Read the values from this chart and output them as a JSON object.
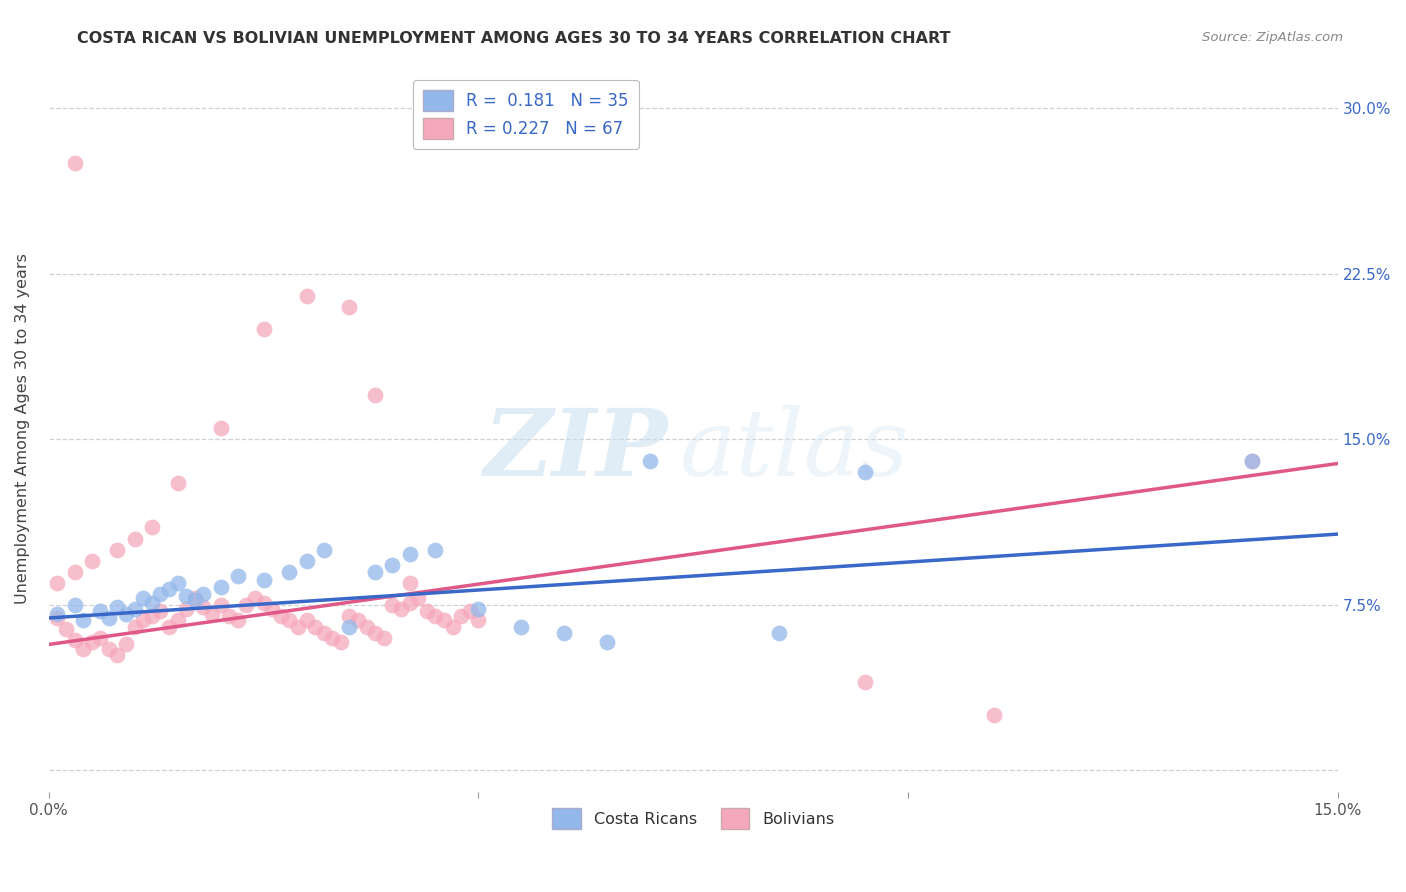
{
  "title": "COSTA RICAN VS BOLIVIAN UNEMPLOYMENT AMONG AGES 30 TO 34 YEARS CORRELATION CHART",
  "source": "Source: ZipAtlas.com",
  "ylabel": "Unemployment Among Ages 30 to 34 years",
  "xlim": [
    0.0,
    0.15
  ],
  "ylim": [
    -0.01,
    0.32
  ],
  "xticks": [
    0.0,
    0.05,
    0.1,
    0.15
  ],
  "xticklabels": [
    "0.0%",
    "",
    "",
    "15.0%"
  ],
  "yticks": [
    0.0,
    0.075,
    0.15,
    0.225,
    0.3
  ],
  "yticklabels_right": [
    "",
    "7.5%",
    "15.0%",
    "22.5%",
    "30.0%"
  ],
  "costa_rican_color": "#93b8ea",
  "bolivian_color": "#f5a8bb",
  "costa_rican_line_color": "#3a68c8",
  "bolivian_line_color": "#e05888",
  "costa_rican_R": 0.181,
  "costa_rican_N": 35,
  "bolivian_R": 0.227,
  "bolivian_N": 67,
  "background_color": "#ffffff",
  "grid_color": "#cccccc",
  "watermark_zip": "ZIP",
  "watermark_atlas": "atlas",
  "costa_ricans_x": [
    0.001,
    0.003,
    0.004,
    0.006,
    0.007,
    0.008,
    0.009,
    0.01,
    0.011,
    0.012,
    0.013,
    0.014,
    0.015,
    0.016,
    0.017,
    0.018,
    0.02,
    0.022,
    0.025,
    0.028,
    0.03,
    0.032,
    0.035,
    0.038,
    0.04,
    0.042,
    0.045,
    0.05,
    0.055,
    0.06,
    0.065,
    0.07,
    0.085,
    0.095,
    0.14
  ],
  "costa_ricans_y": [
    0.071,
    0.075,
    0.068,
    0.072,
    0.069,
    0.074,
    0.071,
    0.073,
    0.078,
    0.076,
    0.08,
    0.082,
    0.085,
    0.079,
    0.077,
    0.08,
    0.083,
    0.088,
    0.086,
    0.09,
    0.095,
    0.1,
    0.065,
    0.09,
    0.093,
    0.098,
    0.1,
    0.073,
    0.065,
    0.062,
    0.058,
    0.14,
    0.062,
    0.135,
    0.14
  ],
  "bolivians_x": [
    0.001,
    0.002,
    0.003,
    0.004,
    0.005,
    0.006,
    0.007,
    0.008,
    0.009,
    0.01,
    0.011,
    0.012,
    0.013,
    0.014,
    0.015,
    0.016,
    0.017,
    0.018,
    0.019,
    0.02,
    0.021,
    0.022,
    0.023,
    0.024,
    0.025,
    0.026,
    0.027,
    0.028,
    0.029,
    0.03,
    0.031,
    0.032,
    0.033,
    0.034,
    0.035,
    0.036,
    0.037,
    0.038,
    0.039,
    0.04,
    0.041,
    0.042,
    0.043,
    0.044,
    0.045,
    0.046,
    0.047,
    0.048,
    0.049,
    0.05,
    0.001,
    0.003,
    0.005,
    0.008,
    0.01,
    0.012,
    0.015,
    0.02,
    0.025,
    0.03,
    0.035,
    0.038,
    0.042,
    0.095,
    0.11,
    0.14,
    0.003
  ],
  "bolivians_y": [
    0.069,
    0.064,
    0.059,
    0.055,
    0.058,
    0.06,
    0.055,
    0.052,
    0.057,
    0.065,
    0.068,
    0.07,
    0.072,
    0.065,
    0.068,
    0.073,
    0.078,
    0.074,
    0.071,
    0.075,
    0.07,
    0.068,
    0.075,
    0.078,
    0.076,
    0.073,
    0.07,
    0.068,
    0.065,
    0.068,
    0.065,
    0.062,
    0.06,
    0.058,
    0.07,
    0.068,
    0.065,
    0.062,
    0.06,
    0.075,
    0.073,
    0.076,
    0.078,
    0.072,
    0.07,
    0.068,
    0.065,
    0.07,
    0.072,
    0.068,
    0.085,
    0.09,
    0.095,
    0.1,
    0.105,
    0.11,
    0.13,
    0.155,
    0.2,
    0.215,
    0.21,
    0.17,
    0.085,
    0.04,
    0.025,
    0.14,
    0.275
  ],
  "cr_line_x0": 0.0,
  "cr_line_x1": 0.15,
  "cr_line_y0": 0.069,
  "cr_line_y1": 0.107,
  "bo_line_x0": 0.0,
  "bo_line_x1": 0.15,
  "bo_line_y0": 0.057,
  "bo_line_y1": 0.139
}
